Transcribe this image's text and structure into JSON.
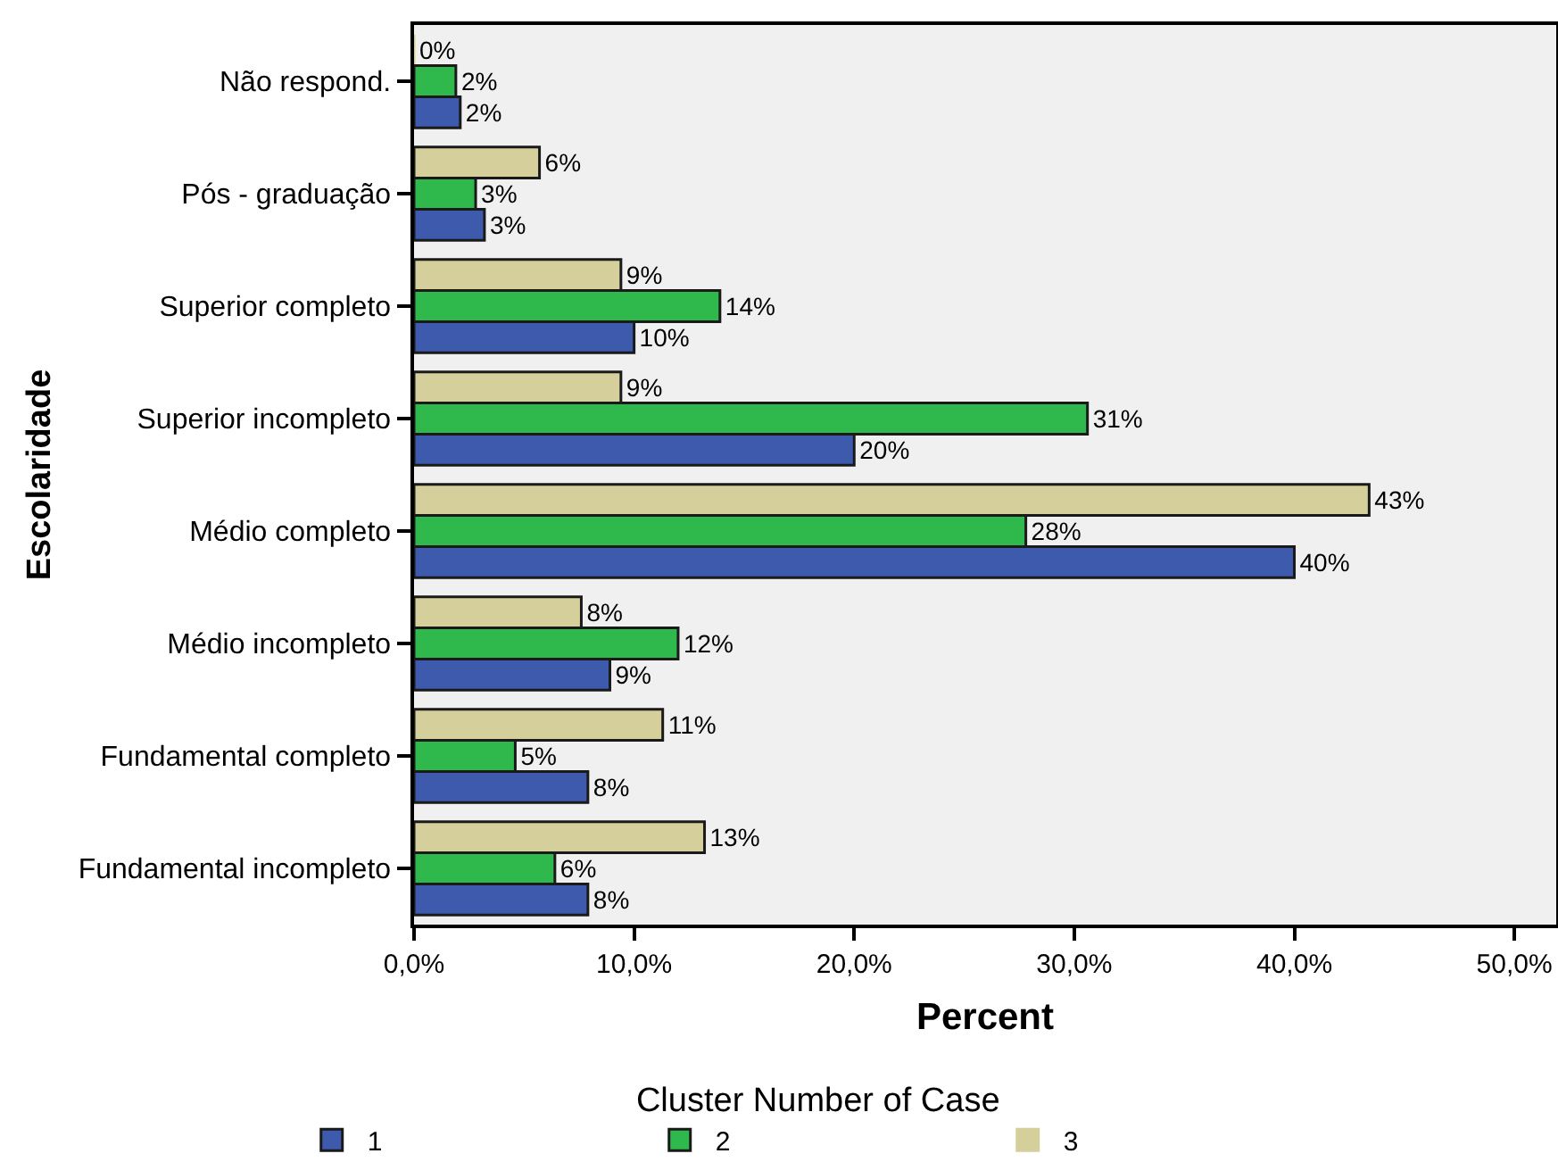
{
  "chart_data": {
    "type": "bar",
    "orientation": "horizontal",
    "xlabel": "Percent",
    "ylabel": "Escolaridade",
    "legend_title": "Cluster Number of Case",
    "categories": [
      "Não respond.",
      "Pós - graduação",
      "Superior completo",
      "Superior incompleto",
      "Médio completo",
      "Médio incompleto",
      "Fundamental completo",
      "Fundamental incompleto"
    ],
    "series": [
      {
        "name": "3",
        "color": "#d5d09b",
        "values": [
          0,
          5.7,
          9.4,
          9.4,
          43.4,
          7.6,
          11.3,
          13.2
        ],
        "value_labels": [
          "0%",
          "6%",
          "9%",
          "9%",
          "43%",
          "8%",
          "11%",
          "13%"
        ]
      },
      {
        "name": "2",
        "color": "#2fb84b",
        "values": [
          1.9,
          2.8,
          13.9,
          30.6,
          27.8,
          12.0,
          4.6,
          6.4
        ],
        "value_labels": [
          "2%",
          "3%",
          "14%",
          "31%",
          "28%",
          "12%",
          "5%",
          "6%"
        ]
      },
      {
        "name": "1",
        "color": "#3e5aad",
        "values": [
          2.1,
          3.2,
          10.0,
          20.0,
          40.0,
          8.9,
          7.9,
          7.9
        ],
        "value_labels": [
          "2%",
          "3%",
          "10%",
          "20%",
          "40%",
          "9%",
          "8%",
          "8%"
        ]
      }
    ],
    "xlim": [
      0,
      51.9
    ],
    "xticks": [
      {
        "value": 0,
        "label": "0,0%"
      },
      {
        "value": 10,
        "label": "10,0%"
      },
      {
        "value": 20,
        "label": "20,0%"
      },
      {
        "value": 30,
        "label": "30,0%"
      },
      {
        "value": 40,
        "label": "40,0%"
      },
      {
        "value": 50,
        "label": "50,0%"
      }
    ],
    "legend": "bottom"
  }
}
